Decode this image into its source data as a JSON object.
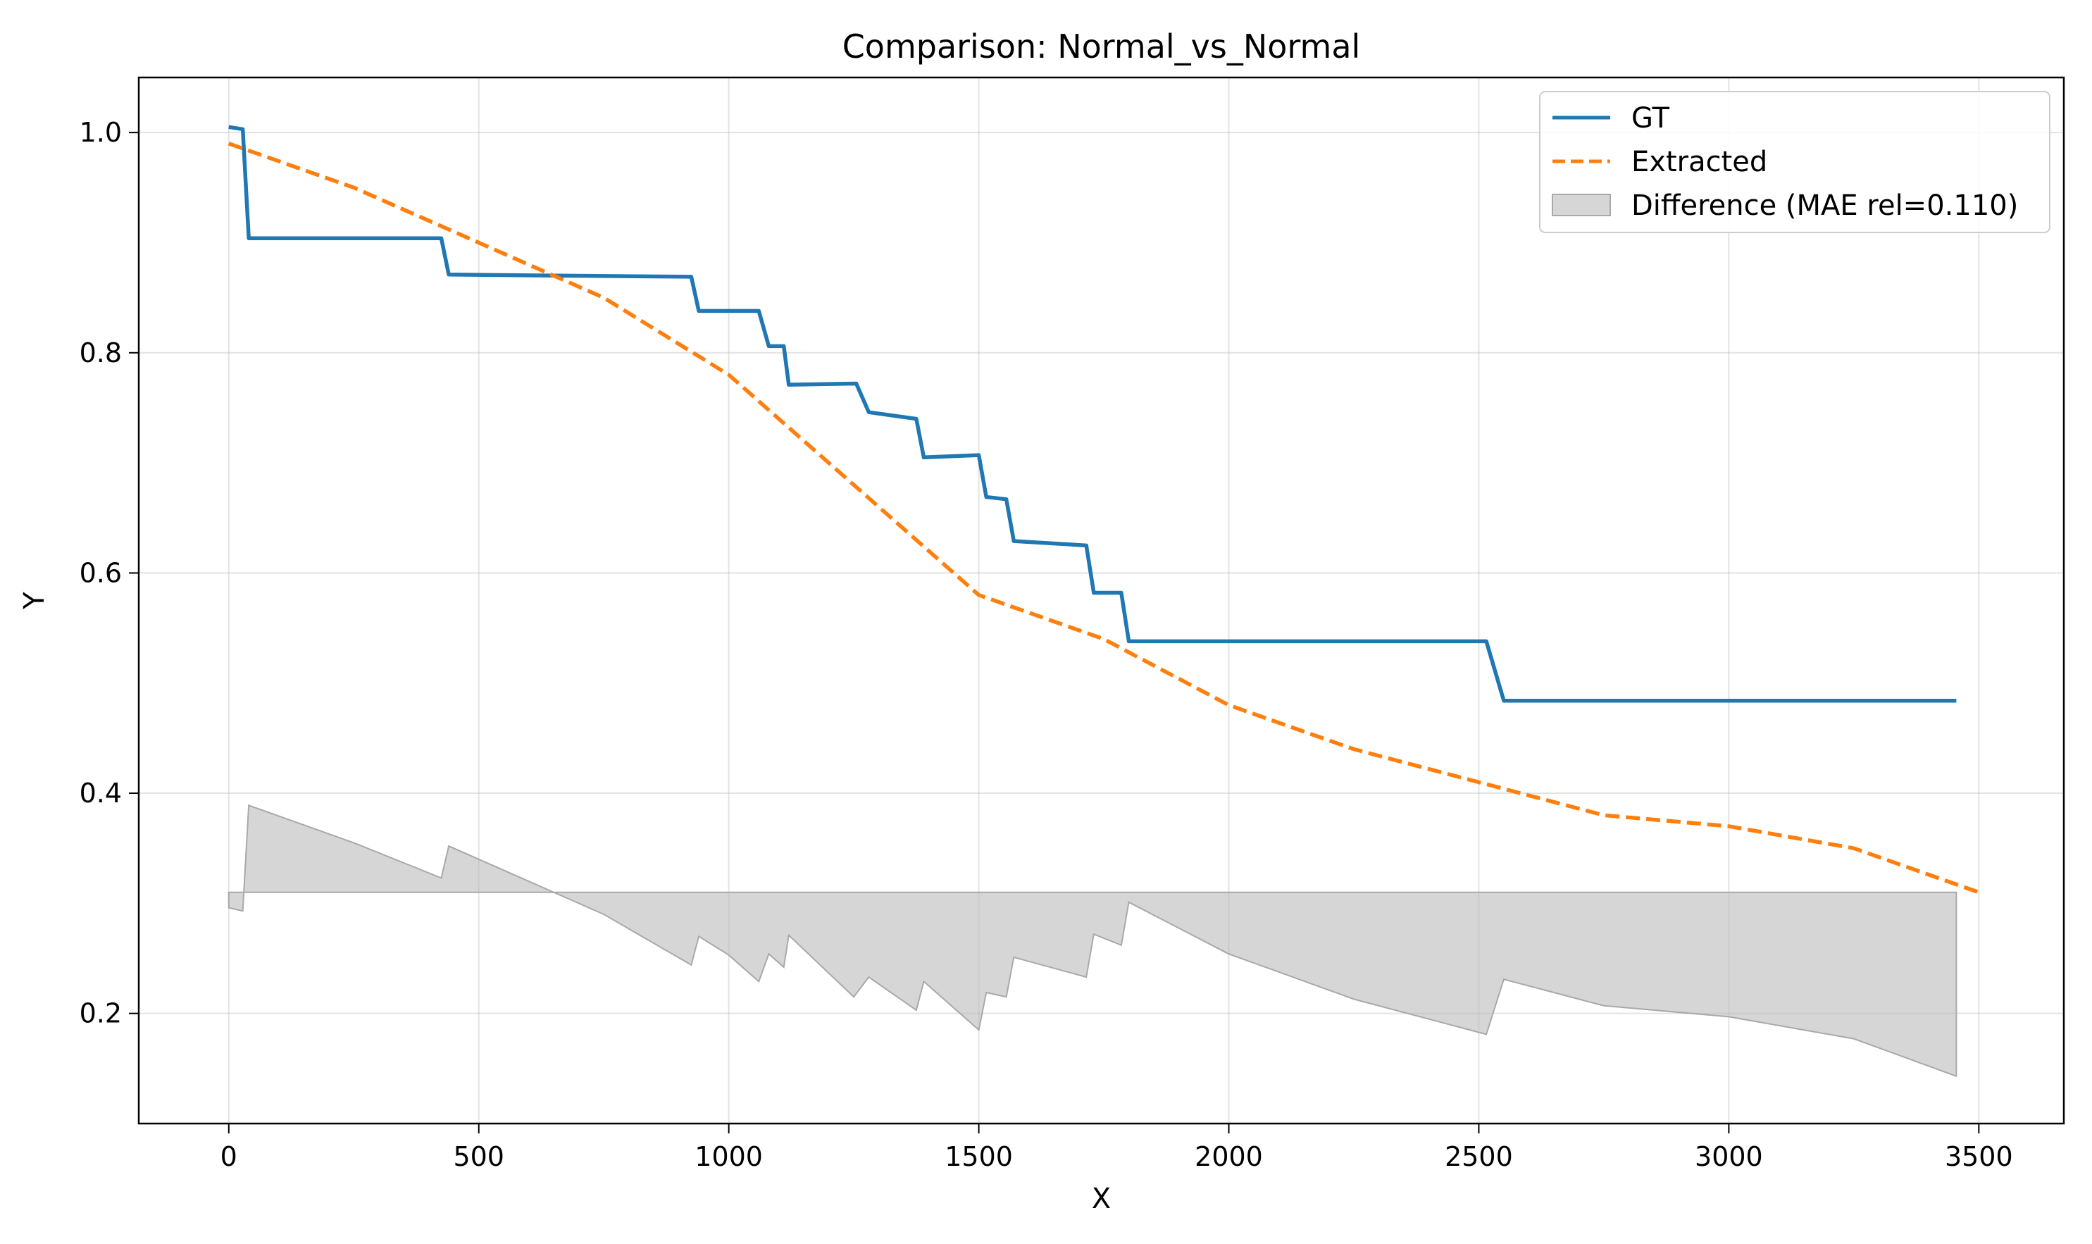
{
  "chart_data": {
    "type": "line",
    "title": "Comparison: Normal_vs_Normal",
    "xlabel": "X",
    "ylabel": "Y",
    "xlim": [
      -180,
      3670
    ],
    "ylim": [
      0.1,
      1.05
    ],
    "xticks": [
      0,
      500,
      1000,
      1500,
      2000,
      2500,
      3000,
      3500
    ],
    "xtick_labels": [
      "0",
      "500",
      "1000",
      "1500",
      "2000",
      "2500",
      "3000",
      "3500"
    ],
    "yticks": [
      0.2,
      0.4,
      0.6,
      0.8,
      1.0
    ],
    "ytick_labels": [
      "0.2",
      "0.4",
      "0.6",
      "0.8",
      "1.0"
    ],
    "grid": true,
    "legend_position": "top-right",
    "series": [
      {
        "name": "GT",
        "color": "#1f77b4",
        "style": "solid",
        "x": [
          0,
          28,
          40,
          425,
          440,
          925,
          940,
          1060,
          1080,
          1110,
          1120,
          1255,
          1280,
          1375,
          1390,
          1500,
          1515,
          1555,
          1570,
          1715,
          1730,
          1785,
          1800,
          2515,
          2550,
          3455
        ],
        "y": [
          1.005,
          1.003,
          0.904,
          0.904,
          0.871,
          0.869,
          0.838,
          0.838,
          0.806,
          0.806,
          0.771,
          0.772,
          0.746,
          0.74,
          0.705,
          0.707,
          0.669,
          0.667,
          0.629,
          0.625,
          0.582,
          0.582,
          0.538,
          0.538,
          0.484,
          0.484
        ]
      },
      {
        "name": "Extracted",
        "color": "#ff7f0e",
        "style": "dashed",
        "x": [
          0,
          250,
          500,
          750,
          1000,
          1250,
          1500,
          1750,
          2000,
          2250,
          2500,
          2750,
          3000,
          3250,
          3500
        ],
        "y": [
          0.99,
          0.95,
          0.9,
          0.85,
          0.78,
          0.68,
          0.58,
          0.54,
          0.48,
          0.44,
          0.41,
          0.38,
          0.37,
          0.35,
          0.31
        ]
      }
    ],
    "fill": {
      "name": "Difference (MAE rel=0.110)",
      "color": "#bbbbbb",
      "baseline": 0.31,
      "x": [
        0,
        28,
        40,
        250,
        425,
        440,
        750,
        925,
        940,
        1000,
        1060,
        1080,
        1110,
        1120,
        1250,
        1280,
        1375,
        1390,
        1500,
        1515,
        1555,
        1570,
        1715,
        1730,
        1785,
        1800,
        2000,
        2250,
        2515,
        2550,
        2750,
        3000,
        3250,
        3455
      ],
      "y": [
        0.296,
        0.293,
        0.389,
        0.355,
        0.323,
        0.352,
        0.29,
        0.244,
        0.27,
        0.253,
        0.229,
        0.254,
        0.242,
        0.271,
        0.215,
        0.233,
        0.203,
        0.229,
        0.185,
        0.219,
        0.215,
        0.251,
        0.233,
        0.272,
        0.262,
        0.301,
        0.254,
        0.213,
        0.181,
        0.231,
        0.207,
        0.197,
        0.177,
        0.143
      ]
    }
  }
}
